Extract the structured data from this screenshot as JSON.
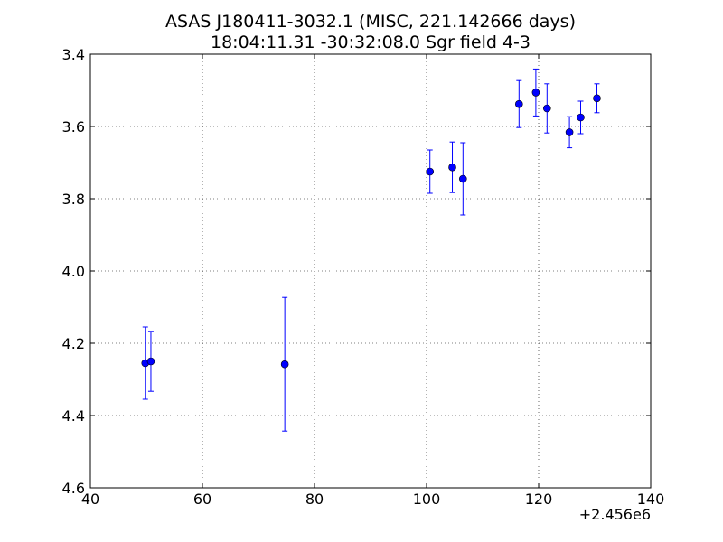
{
  "chart_data": {
    "type": "scatter",
    "title": "ASAS J180411-3032.1  (MISC, 221.142666 days)",
    "subtitle": "18:04:11.31 -30:32:08.0 Sgr field 4-3",
    "xlabel": "",
    "ylabel": "",
    "x_offset_label": "+2.456e6",
    "xlim": [
      40,
      140
    ],
    "ylim": [
      4.6,
      3.4
    ],
    "y_inverted": true,
    "grid": true,
    "grid_style": "dotted",
    "x_ticks": [
      40,
      60,
      80,
      100,
      120,
      140
    ],
    "x_tick_labels": [
      "40",
      "60",
      "80",
      "100",
      "120",
      "140"
    ],
    "y_ticks": [
      3.4,
      3.6,
      3.8,
      4.0,
      4.2,
      4.4,
      4.6
    ],
    "y_tick_labels": [
      "3.4",
      "3.6",
      "3.8",
      "4.0",
      "4.2",
      "4.4",
      "4.6"
    ],
    "marker_color": "#0000ff",
    "errorbar_color": "#0000ff",
    "points": [
      {
        "x": 49.8,
        "y": 4.255,
        "err": 0.1
      },
      {
        "x": 50.8,
        "y": 4.25,
        "err": 0.083
      },
      {
        "x": 74.7,
        "y": 4.258,
        "err": 0.185
      },
      {
        "x": 100.6,
        "y": 3.725,
        "err": 0.06
      },
      {
        "x": 104.6,
        "y": 3.713,
        "err": 0.07
      },
      {
        "x": 106.5,
        "y": 3.745,
        "err": 0.1
      },
      {
        "x": 116.5,
        "y": 3.538,
        "err": 0.065
      },
      {
        "x": 119.5,
        "y": 3.506,
        "err": 0.065
      },
      {
        "x": 121.5,
        "y": 3.55,
        "err": 0.068
      },
      {
        "x": 125.5,
        "y": 3.616,
        "err": 0.043
      },
      {
        "x": 127.5,
        "y": 3.575,
        "err": 0.045
      },
      {
        "x": 130.4,
        "y": 3.522,
        "err": 0.04
      }
    ]
  }
}
